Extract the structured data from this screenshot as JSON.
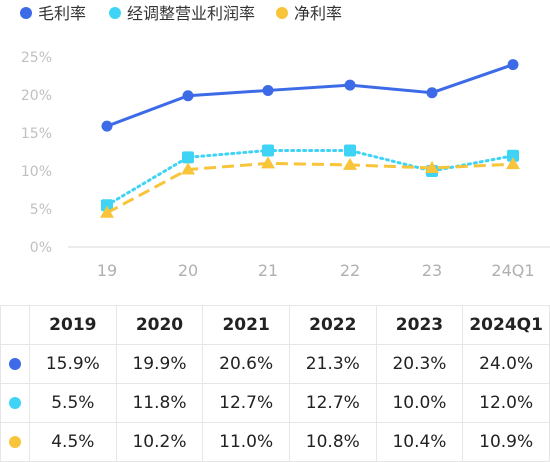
{
  "chart_data": {
    "type": "line",
    "categories": [
      "19",
      "20",
      "21",
      "22",
      "23",
      "24Q1"
    ],
    "series": [
      {
        "name": "毛利率",
        "values": [
          15.9,
          19.9,
          20.6,
          21.3,
          20.3,
          24.0
        ],
        "color": "#3d6be8",
        "marker": "circle",
        "line": "solid"
      },
      {
        "name": "经调整营业利润率",
        "values": [
          5.5,
          11.8,
          12.7,
          12.7,
          10.0,
          12.0
        ],
        "color": "#3fd4f5",
        "marker": "square",
        "line": "dotted"
      },
      {
        "name": "净利率",
        "values": [
          4.5,
          10.2,
          11.0,
          10.8,
          10.4,
          10.9
        ],
        "color": "#f8c43a",
        "marker": "triangle",
        "line": "dashed"
      }
    ],
    "ylim": [
      0,
      25
    ],
    "yticks": [
      "0%",
      "5%",
      "10%",
      "15%",
      "20%",
      "25%"
    ],
    "legend": "top-left",
    "grid": false
  },
  "table": {
    "headers": [
      "2019",
      "2020",
      "2021",
      "2022",
      "2023",
      "2024Q1"
    ],
    "rows": [
      [
        "15.9%",
        "19.9%",
        "20.6%",
        "21.3%",
        "20.3%",
        "24.0%"
      ],
      [
        "5.5%",
        "11.8%",
        "12.7%",
        "12.7%",
        "10.0%",
        "12.0%"
      ],
      [
        "4.5%",
        "10.2%",
        "11.0%",
        "10.8%",
        "10.4%",
        "10.9%"
      ]
    ]
  }
}
